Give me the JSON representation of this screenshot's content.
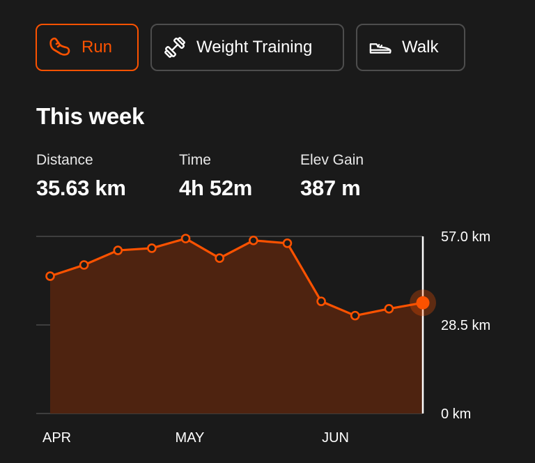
{
  "tabs": [
    {
      "label": "Run",
      "icon": "running-shoe-icon",
      "active": true
    },
    {
      "label": "Weight Training",
      "icon": "dumbbell-icon",
      "active": false
    },
    {
      "label": "Walk",
      "icon": "walking-shoe-icon",
      "active": false
    }
  ],
  "summary": {
    "heading": "This week",
    "distance_label": "Distance",
    "distance_value": "35.63 km",
    "time_label": "Time",
    "time_value": "4h 52m",
    "elev_label": "Elev Gain",
    "elev_value": "387 m"
  },
  "colors": {
    "accent": "#fc5200",
    "background": "#1a1a1a",
    "area_fill": "#4e2310"
  },
  "chart_data": {
    "type": "area",
    "x_labels": [
      "APR",
      "MAY",
      "JUN"
    ],
    "y_ticks": [
      "0 km",
      "28.5 km",
      "57.0 km"
    ],
    "ylim": [
      0,
      57.0
    ],
    "values": [
      44.2,
      47.8,
      52.5,
      53.2,
      56.3,
      50.0,
      55.7,
      54.8,
      36.1,
      31.5,
      33.7,
      35.63
    ],
    "highlight_last": true,
    "grid": true
  }
}
